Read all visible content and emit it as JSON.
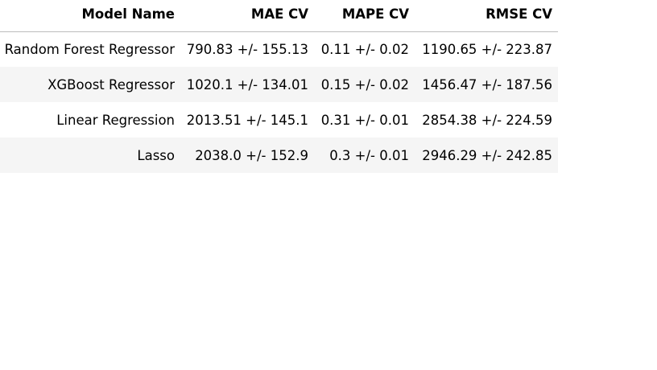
{
  "table": {
    "headers": [
      "Model Name",
      "MAE CV",
      "MAPE CV",
      "RMSE CV"
    ],
    "rows": [
      [
        "Random Forest Regressor",
        "790.83 +/- 155.13",
        "0.11 +/- 0.02",
        "1190.65 +/- 223.87"
      ],
      [
        "XGBoost Regressor",
        "1020.1 +/- 134.01",
        "0.15 +/- 0.02",
        "1456.47 +/- 187.56"
      ],
      [
        "Linear Regression",
        "2013.51 +/- 145.1",
        "0.31 +/- 0.01",
        "2854.38 +/- 224.59"
      ],
      [
        "Lasso",
        "2038.0 +/- 152.9",
        "0.3 +/- 0.01",
        "2946.29 +/- 242.85"
      ]
    ]
  },
  "colors": {
    "header_border": "#bdbdbd",
    "row_stripe": "#f5f5f5",
    "background": "#ffffff",
    "text": "#000000"
  }
}
